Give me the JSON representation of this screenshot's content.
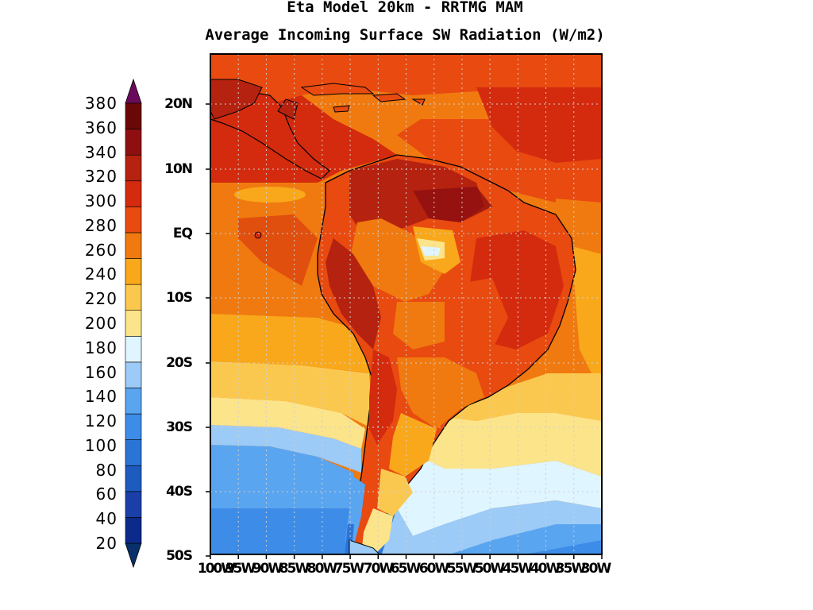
{
  "title_line1": "Eta Model 20km - RRTMG MAM",
  "title_line2": "Average Incoming Surface SW Radiation (W/m2)",
  "colorbar": {
    "levels": [
      20,
      40,
      60,
      80,
      100,
      120,
      140,
      160,
      180,
      200,
      220,
      240,
      260,
      280,
      300,
      320,
      340,
      360,
      380
    ],
    "labels": [
      "380",
      "360",
      "340",
      "320",
      "300",
      "280",
      "260",
      "240",
      "220",
      "200",
      "180",
      "160",
      "140",
      "120",
      "100",
      "80",
      "60",
      "40",
      "20"
    ],
    "colors": [
      "#08306b",
      "#0c2a8a",
      "#1a3fa8",
      "#1d5bbf",
      "#2a74d6",
      "#3d8ce8",
      "#5aa5f0",
      "#9ccbf7",
      "#dff5ff",
      "#fce48a",
      "#fbc84f",
      "#f9a81c",
      "#f07a0f",
      "#e84a10",
      "#d42b0e",
      "#b5220f",
      "#8f0f10",
      "#6a0808",
      "#6b0a5c"
    ]
  },
  "map": {
    "lat_labels": [
      "20N",
      "10N",
      "EQ",
      "10S",
      "20S",
      "30S",
      "40S",
      "50S"
    ],
    "lon_labels": [
      "100W",
      "95W",
      "90W",
      "85W",
      "80W",
      "75W",
      "70W",
      "65W",
      "60W",
      "55W",
      "50W",
      "45W",
      "40W",
      "35W",
      "30W"
    ]
  }
}
